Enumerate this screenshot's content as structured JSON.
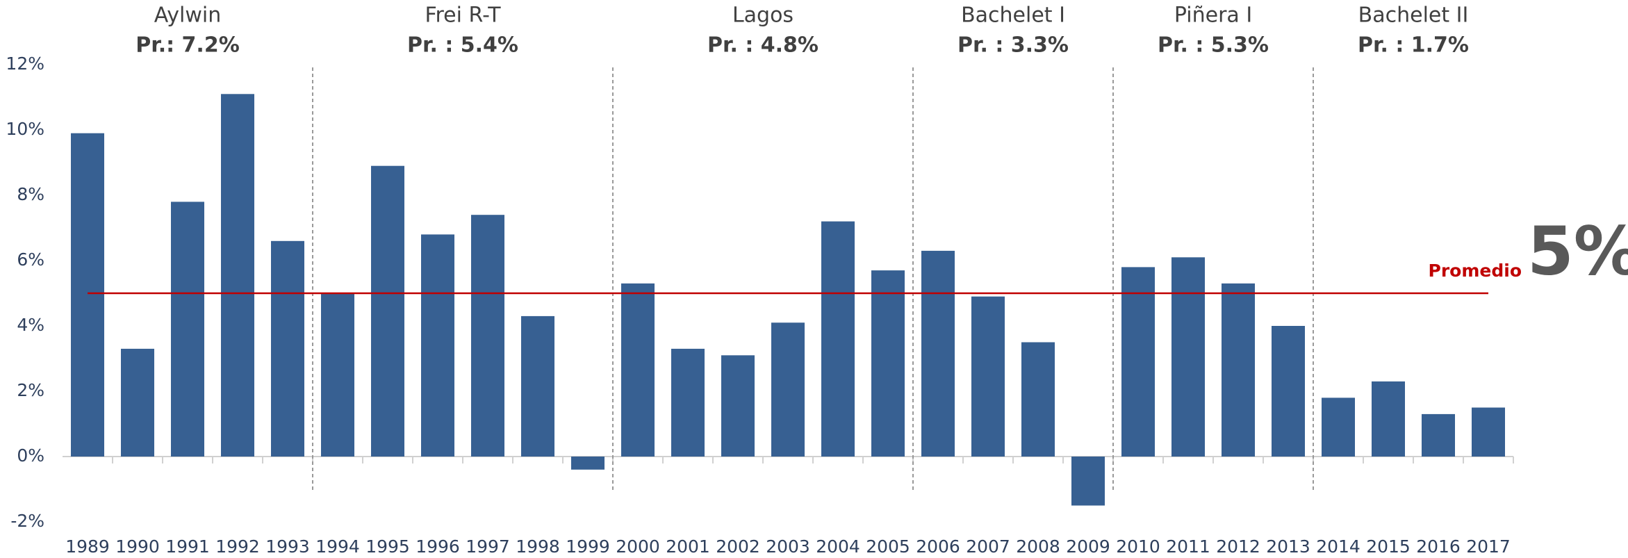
{
  "chart_data": {
    "type": "bar",
    "categories": [
      "1989",
      "1990",
      "1991",
      "1992",
      "1993",
      "1994",
      "1995",
      "1996",
      "1997",
      "1998",
      "1999",
      "2000",
      "2001",
      "2002",
      "2003",
      "2004",
      "2005",
      "2006",
      "2007",
      "2008",
      "2009",
      "2010",
      "2011",
      "2012",
      "2013",
      "2014",
      "2015",
      "2016",
      "2017"
    ],
    "values": [
      9.9,
      3.3,
      7.8,
      11.1,
      6.6,
      5.0,
      8.9,
      6.8,
      7.4,
      4.3,
      -0.4,
      5.3,
      3.3,
      3.1,
      4.1,
      7.2,
      5.7,
      6.3,
      4.9,
      3.5,
      -1.5,
      5.8,
      6.1,
      5.3,
      4.0,
      1.8,
      2.3,
      1.3,
      1.5
    ],
    "color": "#376092",
    "ylim": [
      -2,
      12
    ],
    "yticks": [
      {
        "value": -2,
        "label": "-2%"
      },
      {
        "value": 0,
        "label": "0%"
      },
      {
        "value": 2,
        "label": "2%"
      },
      {
        "value": 4,
        "label": "4%"
      },
      {
        "value": 6,
        "label": "6%"
      },
      {
        "value": 8,
        "label": "8%"
      },
      {
        "value": 10,
        "label": "10%"
      },
      {
        "value": 12,
        "label": "12%"
      }
    ],
    "periods": [
      {
        "name": "Aylwin",
        "average": "Pr.: 7.2%"
      },
      {
        "name": "Frei R-T",
        "average": "Pr. : 5.4%"
      },
      {
        "name": "Lagos",
        "average": "Pr. : 4.8%"
      },
      {
        "name": "Bachelet I",
        "average": "Pr. : 3.3%"
      },
      {
        "name": "Piñera I",
        "average": "Pr. : 5.3%"
      },
      {
        "name": "Bachelet II",
        "average": "Pr. : 1.7%"
      }
    ],
    "reference_line": {
      "label": "Promedio",
      "value": 5,
      "value_label": "5%",
      "color": "#c00000"
    }
  }
}
